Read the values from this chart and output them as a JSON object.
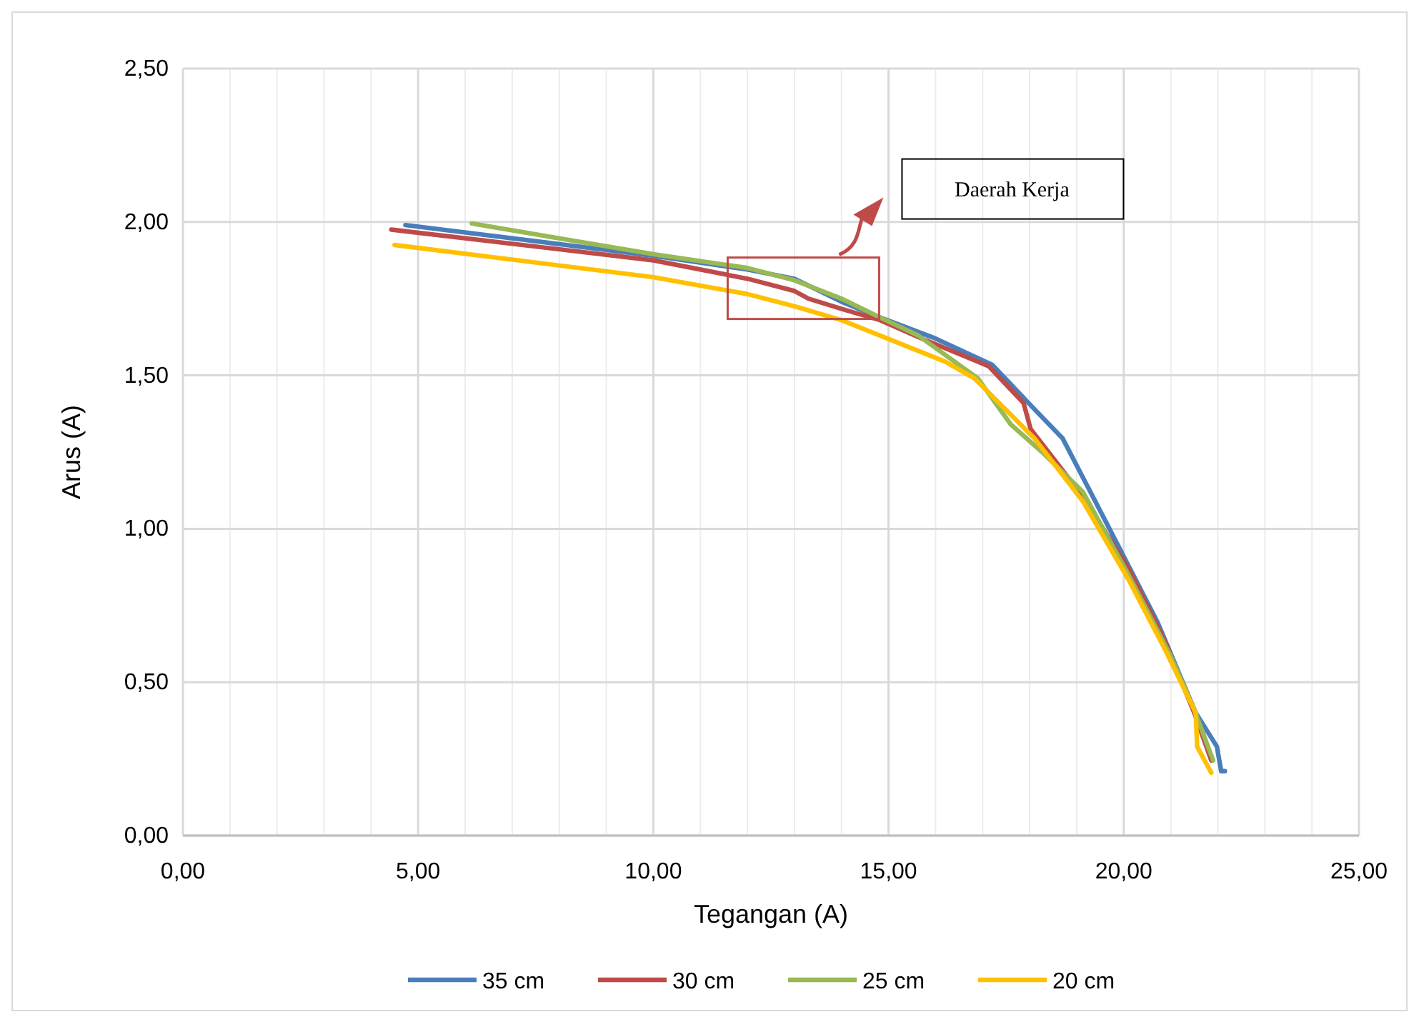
{
  "chart_data": {
    "type": "line",
    "xlabel": "Tegangan (A)",
    "ylabel": "Arus (A)",
    "xlim": [
      0,
      25
    ],
    "ylim": [
      0,
      2.5
    ],
    "xticks": [
      {
        "value": 0,
        "label": "0,00"
      },
      {
        "value": 1,
        "label": null
      },
      {
        "value": 2,
        "label": null
      },
      {
        "value": 3,
        "label": null
      },
      {
        "value": 4,
        "label": null
      },
      {
        "value": 5,
        "label": "5,00"
      },
      {
        "value": 6,
        "label": null
      },
      {
        "value": 7,
        "label": null
      },
      {
        "value": 8,
        "label": null
      },
      {
        "value": 9,
        "label": null
      },
      {
        "value": 10,
        "label": "10,00"
      },
      {
        "value": 11,
        "label": null
      },
      {
        "value": 12,
        "label": null
      },
      {
        "value": 13,
        "label": null
      },
      {
        "value": 14,
        "label": null
      },
      {
        "value": 15,
        "label": "15,00"
      },
      {
        "value": 16,
        "label": null
      },
      {
        "value": 17,
        "label": null
      },
      {
        "value": 18,
        "label": null
      },
      {
        "value": 19,
        "label": null
      },
      {
        "value": 20,
        "label": "20,00"
      },
      {
        "value": 21,
        "label": null
      },
      {
        "value": 22,
        "label": null
      },
      {
        "value": 23,
        "label": null
      },
      {
        "value": 24,
        "label": null
      },
      {
        "value": 25,
        "label": "25,00"
      }
    ],
    "yticks": [
      {
        "value": 0,
        "label": "0,00"
      },
      {
        "value": 0.5,
        "label": "0,50"
      },
      {
        "value": 1,
        "label": "1,00"
      },
      {
        "value": 1.5,
        "label": "1,50"
      },
      {
        "value": 2,
        "label": "2,00"
      },
      {
        "value": 2.5,
        "label": "2,50"
      }
    ],
    "grid": true,
    "legend": "bottom",
    "marker": "none",
    "line_style": "solid",
    "annotations": [
      "Daerah Kerja"
    ],
    "series": [
      {
        "name": "35 cm",
        "color": "#4a7ebb",
        "x": [
          4.73,
          10,
          12,
          13,
          14,
          14.8,
          16,
          17.2,
          18.1,
          18.7,
          19.73,
          20.72,
          21.53,
          21.98,
          22.07,
          22.15
        ],
        "values": [
          1.99,
          1.89,
          1.845,
          1.815,
          1.74,
          1.69,
          1.62,
          1.535,
          1.39,
          1.295,
          0.99,
          0.695,
          0.4,
          0.29,
          0.21,
          0.21
        ]
      },
      {
        "name": "30 cm",
        "color": "#be4b48",
        "x": [
          4.43,
          10,
          12,
          13,
          13.3,
          14.04,
          14.82,
          15.63,
          17.13,
          17.87,
          18.02,
          19.13,
          20.1,
          20.87,
          21.5,
          21.86
        ],
        "values": [
          1.975,
          1.875,
          1.815,
          1.775,
          1.75,
          1.715,
          1.68,
          1.625,
          1.53,
          1.41,
          1.325,
          1.105,
          0.87,
          0.635,
          0.4,
          0.245
        ]
      },
      {
        "name": "25 cm",
        "color": "#98b954",
        "x": [
          6.14,
          10,
          12,
          13,
          14,
          14.8,
          15.63,
          16.9,
          17.6,
          18.3,
          19.13,
          20.1,
          21,
          21.5,
          21.9
        ],
        "values": [
          1.995,
          1.895,
          1.85,
          1.81,
          1.75,
          1.69,
          1.63,
          1.49,
          1.34,
          1.245,
          1.12,
          0.85,
          0.585,
          0.41,
          0.245
        ]
      },
      {
        "name": "20 cm",
        "color": "#ffc000",
        "x": [
          4.5,
          10,
          12,
          13,
          14,
          16.2,
          16.83,
          18.1,
          19.13,
          20.1,
          20.9,
          21.53,
          21.56,
          21.86
        ],
        "values": [
          1.925,
          1.82,
          1.765,
          1.725,
          1.68,
          1.545,
          1.49,
          1.295,
          1.09,
          0.835,
          0.6,
          0.4,
          0.29,
          0.205
        ]
      }
    ]
  }
}
